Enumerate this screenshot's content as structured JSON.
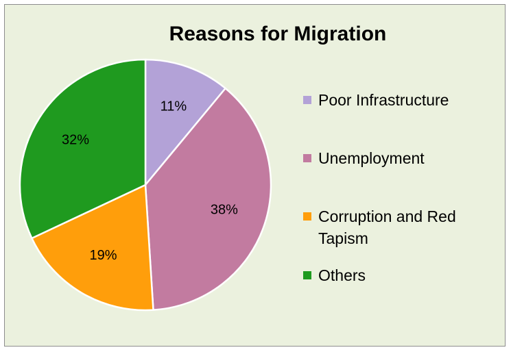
{
  "chart_data": {
    "type": "pie",
    "title": "Reasons for Migration",
    "categories": [
      "Poor Infrastructure",
      "Unemployment",
      "Corruption and Red Tapism",
      "Others"
    ],
    "values": [
      11,
      38,
      19,
      32
    ],
    "value_labels": [
      "11%",
      "38%",
      "19%",
      "32%"
    ],
    "colors": [
      "#b3a2d7",
      "#c27ba0",
      "#ff9e0b",
      "#1f9a1f"
    ],
    "legend_position": "right",
    "label_position": "inside",
    "background_color": "#ebf1de"
  }
}
